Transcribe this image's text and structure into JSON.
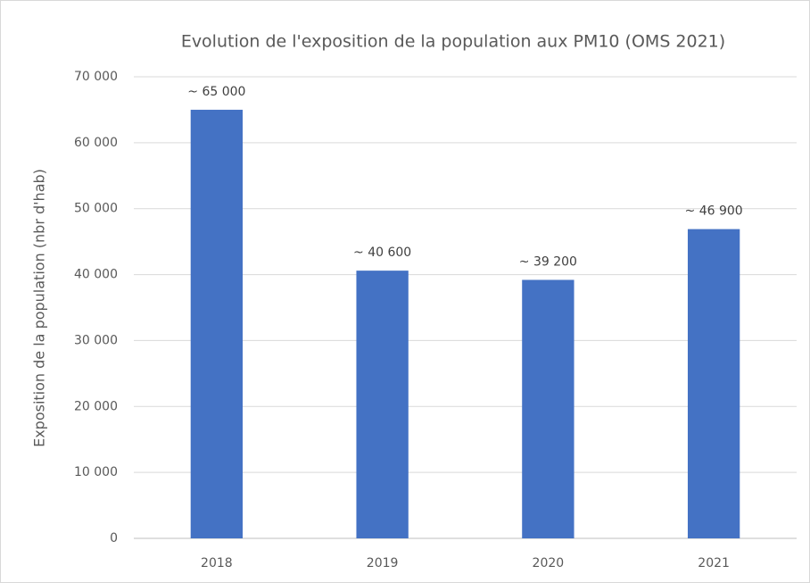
{
  "chart_data": {
    "type": "bar",
    "title": "Evolution de l'exposition de la population aux PM10 (OMS 2021)",
    "y_label": "Exposition de la population (nbr d'hab)",
    "categories": [
      "2018",
      "2019",
      "2020",
      "2021"
    ],
    "values": [
      65000,
      40600,
      39200,
      46900
    ],
    "value_labels": [
      "~ 65 000",
      "~ 40 600",
      "~ 39 200",
      "~ 46 900"
    ],
    "color": "#4472c4",
    "ylim": [
      0,
      70000
    ],
    "yticks": [
      0,
      {
        "value": 10000,
        "label": "10 000"
      },
      {
        "value": 20000,
        "label": "20 000"
      },
      {
        "value": 30000,
        "label": "30 000"
      },
      {
        "value": 40000,
        "label": "40 000"
      },
      {
        "value": 50000,
        "label": "50 000"
      },
      {
        "value": 60000,
        "label": "60 000"
      },
      {
        "value": 70000,
        "label": "70 000"
      }
    ],
    "grid": true
  }
}
